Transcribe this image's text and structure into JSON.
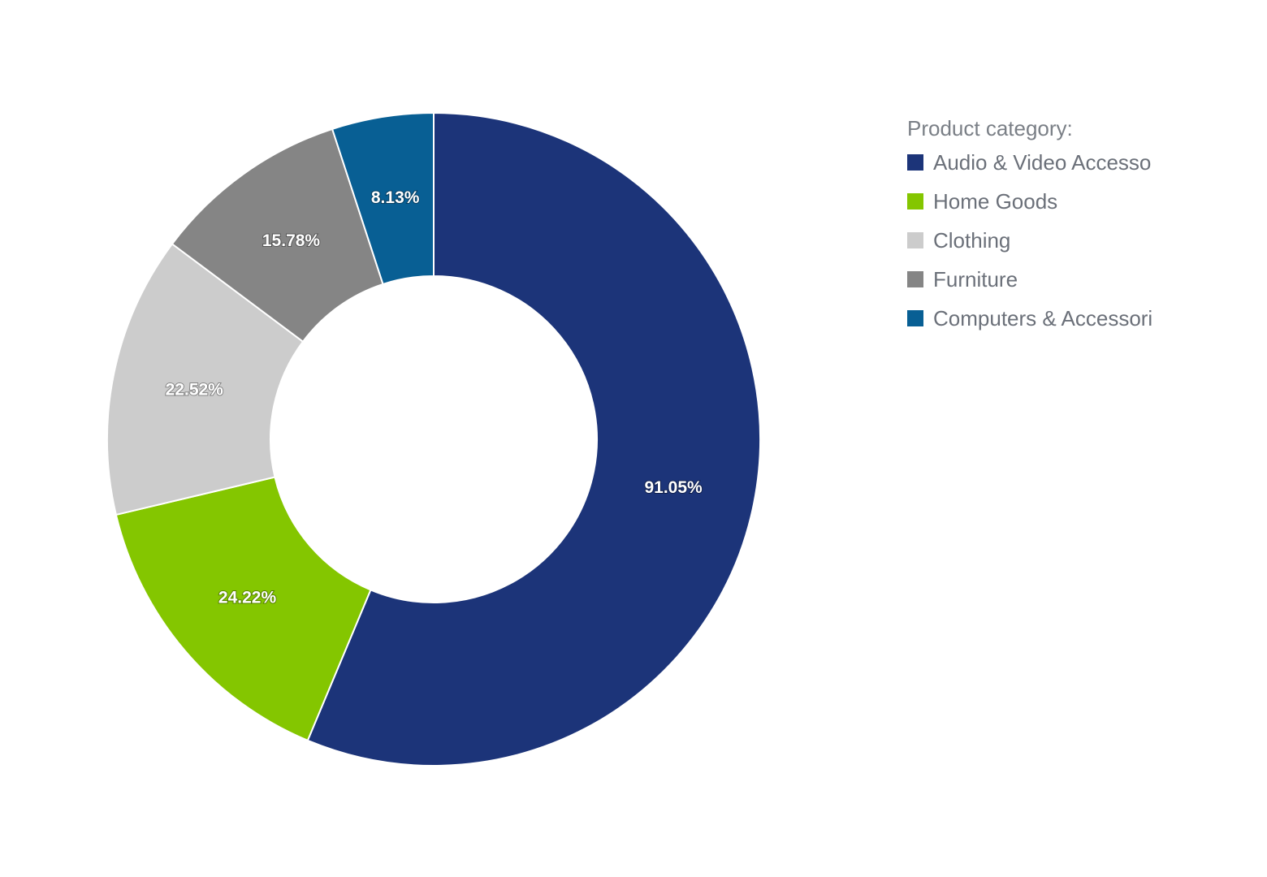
{
  "chart_data": {
    "type": "pie",
    "variant": "donut",
    "legend_title": "Product category:",
    "legend_position": "top-right",
    "slices": [
      {
        "label": "Audio & Video Accesso",
        "value": 91.05,
        "value_label": "91.05%",
        "color": "#1c3479"
      },
      {
        "label": "Home Goods",
        "value": 24.22,
        "value_label": "24.22%",
        "color": "#84c600"
      },
      {
        "label": "Clothing",
        "value": 22.52,
        "value_label": "22.52%",
        "color": "#cccccc"
      },
      {
        "label": "Furniture",
        "value": 15.78,
        "value_label": "15.78%",
        "color": "#858585"
      },
      {
        "label": "Computers & Accessori",
        "value": 8.13,
        "value_label": "8.13%",
        "color": "#085f94"
      }
    ]
  }
}
